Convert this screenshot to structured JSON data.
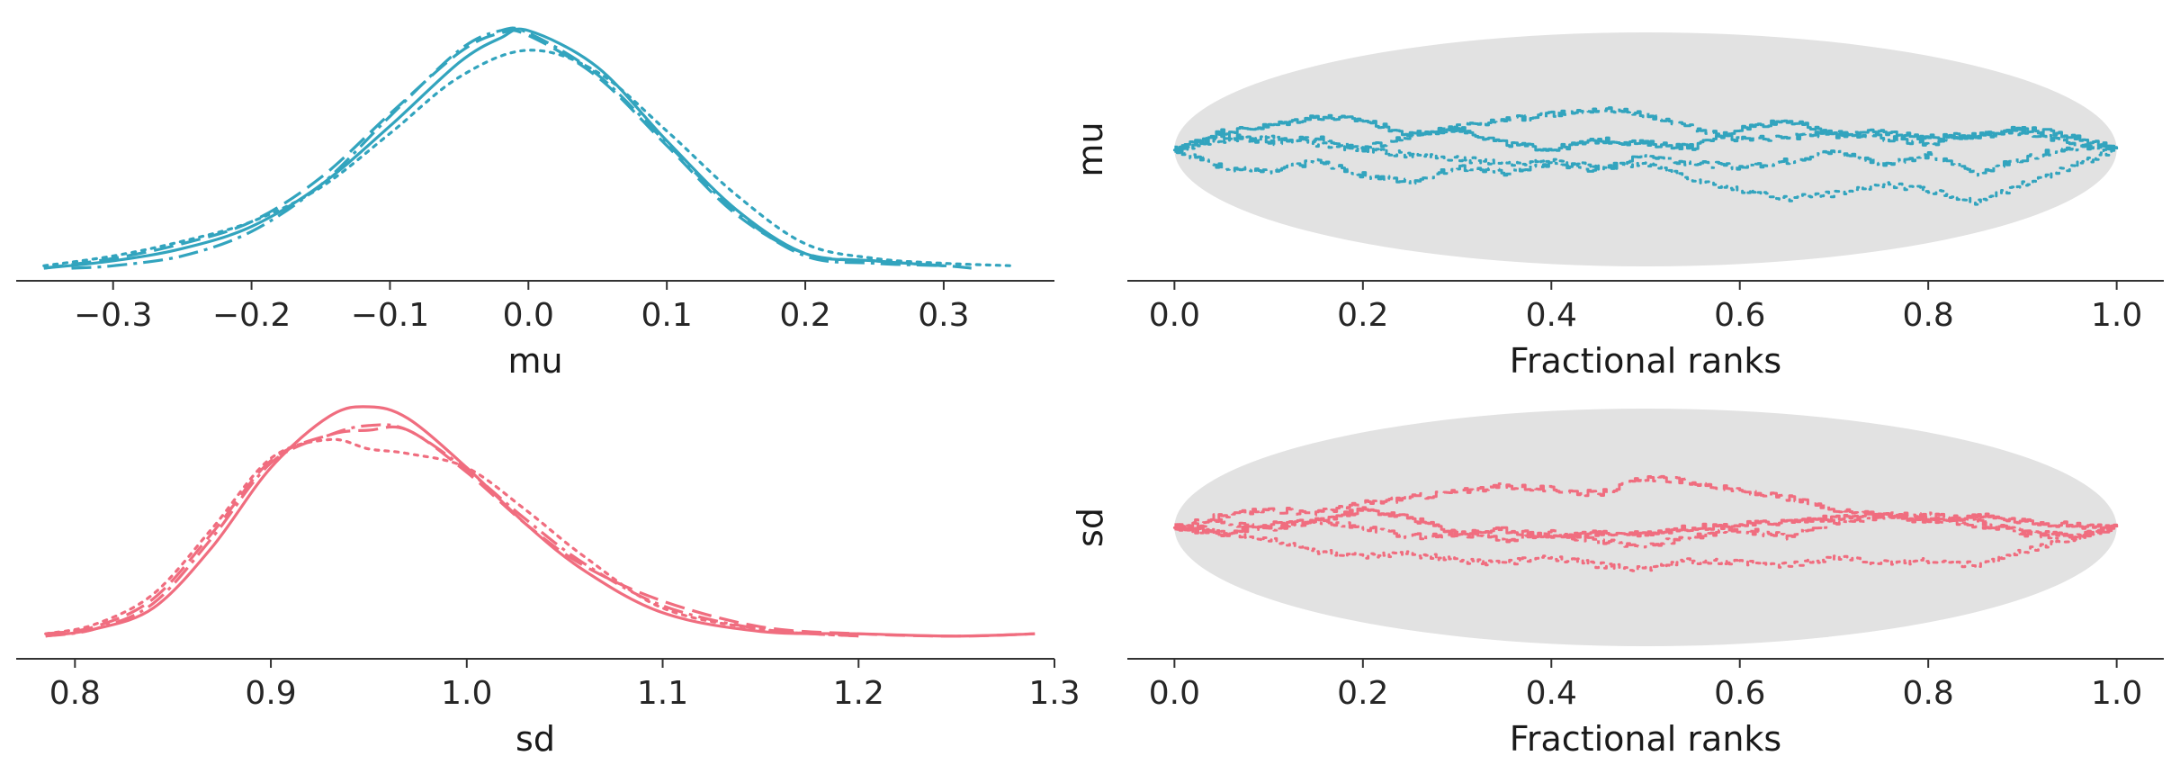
{
  "colors": {
    "mu": "#32a4be",
    "sd": "#f06d7f",
    "band": "#e2e2e2"
  },
  "chart_data": [
    {
      "id": "mu-density",
      "type": "line",
      "xlabel": "mu",
      "ylabel": "",
      "xlim": [
        -0.37,
        0.38
      ],
      "xticks": [
        -0.3,
        -0.2,
        -0.1,
        0.0,
        0.1,
        0.2,
        0.3
      ],
      "xtick_labels": [
        "−0.3",
        "−0.2",
        "−0.1",
        "0.0",
        "0.1",
        "0.2",
        "0.3"
      ],
      "yticks": [],
      "grid": false,
      "series": [
        {
          "style": "solid",
          "x": [
            -0.35,
            -0.3,
            -0.25,
            -0.2,
            -0.15,
            -0.1,
            -0.05,
            -0.02,
            0.0,
            0.05,
            0.1,
            0.15,
            0.2,
            0.25,
            0.3
          ],
          "y": [
            0.0,
            0.03,
            0.08,
            0.17,
            0.34,
            0.58,
            0.84,
            0.94,
            0.97,
            0.82,
            0.52,
            0.24,
            0.06,
            0.03,
            0.01
          ]
        },
        {
          "style": "dashed",
          "x": [
            -0.35,
            -0.3,
            -0.25,
            -0.2,
            -0.15,
            -0.1,
            -0.05,
            -0.02,
            0.0,
            0.05,
            0.1,
            0.15,
            0.2,
            0.25,
            0.3
          ],
          "y": [
            0.0,
            0.04,
            0.1,
            0.19,
            0.37,
            0.63,
            0.88,
            0.96,
            0.95,
            0.78,
            0.5,
            0.22,
            0.06,
            0.03,
            0.01
          ]
        },
        {
          "style": "dotted",
          "x": [
            -0.35,
            -0.3,
            -0.25,
            -0.2,
            -0.15,
            -0.1,
            -0.05,
            0.0,
            0.05,
            0.1,
            0.15,
            0.2,
            0.25,
            0.3,
            0.35
          ],
          "y": [
            0.01,
            0.05,
            0.11,
            0.19,
            0.33,
            0.55,
            0.78,
            0.89,
            0.8,
            0.56,
            0.3,
            0.1,
            0.04,
            0.02,
            0.01
          ]
        },
        {
          "style": "dashdot",
          "x": [
            -0.33,
            -0.3,
            -0.25,
            -0.2,
            -0.15,
            -0.1,
            -0.05,
            -0.02,
            0.0,
            0.05,
            0.1,
            0.15,
            0.2,
            0.25,
            0.3,
            0.32
          ],
          "y": [
            0.0,
            0.01,
            0.05,
            0.15,
            0.34,
            0.62,
            0.89,
            0.97,
            0.96,
            0.79,
            0.51,
            0.23,
            0.05,
            0.02,
            0.01,
            0.0
          ]
        }
      ]
    },
    {
      "id": "mu-rank",
      "type": "line",
      "xlabel": "Fractional ranks",
      "ylabel": "mu",
      "xlim": [
        -0.05,
        1.05
      ],
      "xticks": [
        0.0,
        0.2,
        0.4,
        0.6,
        0.8,
        1.0
      ],
      "xtick_labels": [
        "0.0",
        "0.2",
        "0.4",
        "0.6",
        "0.8",
        "1.0"
      ],
      "yticks": [],
      "ylim": [
        -1,
        1
      ],
      "grid": false,
      "band": "ellipse",
      "series": [
        {
          "style": "solid",
          "x": [
            0.0,
            0.05,
            0.1,
            0.15,
            0.2,
            0.25,
            0.3,
            0.35,
            0.4,
            0.45,
            0.5,
            0.55,
            0.6,
            0.65,
            0.7,
            0.75,
            0.8,
            0.85,
            0.9,
            0.95,
            1.0
          ],
          "y": [
            0.0,
            0.15,
            0.2,
            0.28,
            0.25,
            0.12,
            0.18,
            0.05,
            0.0,
            0.08,
            0.05,
            0.02,
            0.18,
            0.25,
            0.12,
            0.15,
            0.1,
            0.12,
            0.18,
            0.12,
            0.0
          ]
        },
        {
          "style": "dashed",
          "x": [
            0.0,
            0.05,
            0.1,
            0.15,
            0.2,
            0.25,
            0.3,
            0.35,
            0.4,
            0.45,
            0.5,
            0.55,
            0.6,
            0.65,
            0.7,
            0.75,
            0.8,
            0.85,
            0.9,
            0.95,
            1.0
          ],
          "y": [
            0.0,
            0.12,
            0.06,
            0.1,
            0.0,
            0.12,
            0.2,
            0.25,
            0.3,
            0.35,
            0.3,
            0.18,
            0.08,
            0.1,
            0.15,
            0.1,
            0.05,
            0.12,
            0.15,
            0.05,
            0.0
          ]
        },
        {
          "style": "dotted",
          "x": [
            0.0,
            0.05,
            0.1,
            0.15,
            0.2,
            0.25,
            0.3,
            0.35,
            0.4,
            0.45,
            0.5,
            0.55,
            0.6,
            0.65,
            0.7,
            0.75,
            0.8,
            0.85,
            0.9,
            0.95,
            1.0
          ],
          "y": [
            0.0,
            0.08,
            0.1,
            0.05,
            0.0,
            -0.05,
            -0.08,
            -0.12,
            -0.1,
            -0.15,
            -0.12,
            -0.25,
            -0.35,
            -0.42,
            -0.38,
            -0.3,
            -0.35,
            -0.45,
            -0.3,
            -0.15,
            0.0
          ]
        },
        {
          "style": "dashdot",
          "x": [
            0.0,
            0.05,
            0.1,
            0.15,
            0.2,
            0.25,
            0.3,
            0.35,
            0.4,
            0.45,
            0.5,
            0.55,
            0.6,
            0.65,
            0.7,
            0.75,
            0.8,
            0.85,
            0.9,
            0.95,
            1.0
          ],
          "y": [
            0.0,
            -0.15,
            -0.2,
            -0.1,
            -0.22,
            -0.28,
            -0.15,
            -0.2,
            -0.12,
            -0.18,
            -0.05,
            -0.12,
            -0.15,
            -0.1,
            -0.02,
            -0.12,
            -0.05,
            -0.2,
            -0.08,
            0.02,
            0.0
          ]
        }
      ]
    },
    {
      "id": "sd-density",
      "type": "line",
      "xlabel": "sd",
      "ylabel": "",
      "xlim": [
        0.77,
        1.3
      ],
      "xticks": [
        0.8,
        0.9,
        1.0,
        1.1,
        1.2,
        1.3
      ],
      "xtick_labels": [
        "0.8",
        "0.9",
        "1.0",
        "1.1",
        "1.2",
        "1.3"
      ],
      "yticks": [],
      "grid": false,
      "series": [
        {
          "style": "solid",
          "x": [
            0.785,
            0.81,
            0.84,
            0.87,
            0.9,
            0.93,
            0.95,
            0.97,
            1.0,
            1.03,
            1.06,
            1.1,
            1.15,
            1.2,
            1.25,
            1.29
          ],
          "y": [
            0.02,
            0.05,
            0.14,
            0.4,
            0.74,
            0.96,
            1.0,
            0.95,
            0.74,
            0.5,
            0.3,
            0.12,
            0.04,
            0.03,
            0.02,
            0.03
          ]
        },
        {
          "style": "dashed",
          "x": [
            0.785,
            0.81,
            0.84,
            0.87,
            0.9,
            0.93,
            0.95,
            0.97,
            1.0,
            1.03,
            1.06,
            1.1,
            1.15,
            1.2,
            1.25,
            1.29
          ],
          "y": [
            0.03,
            0.06,
            0.18,
            0.46,
            0.77,
            0.88,
            0.9,
            0.9,
            0.72,
            0.5,
            0.32,
            0.17,
            0.06,
            0.03,
            0.02,
            0.03
          ]
        },
        {
          "style": "dotted",
          "x": [
            0.785,
            0.81,
            0.84,
            0.87,
            0.9,
            0.93,
            0.95,
            0.97,
            1.0,
            1.03,
            1.06,
            1.1,
            1.15,
            1.2
          ],
          "y": [
            0.03,
            0.07,
            0.2,
            0.48,
            0.78,
            0.86,
            0.82,
            0.8,
            0.74,
            0.56,
            0.36,
            0.14,
            0.05,
            0.02
          ]
        },
        {
          "style": "dashdot",
          "x": [
            0.785,
            0.81,
            0.84,
            0.87,
            0.9,
            0.93,
            0.95,
            0.97,
            1.0,
            1.03,
            1.06,
            1.1,
            1.15,
            1.2
          ],
          "y": [
            0.02,
            0.05,
            0.16,
            0.44,
            0.76,
            0.88,
            0.92,
            0.9,
            0.73,
            0.52,
            0.33,
            0.15,
            0.05,
            0.02
          ]
        }
      ]
    },
    {
      "id": "sd-rank",
      "type": "line",
      "xlabel": "Fractional ranks",
      "ylabel": "sd",
      "xlim": [
        -0.05,
        1.05
      ],
      "xticks": [
        0.0,
        0.2,
        0.4,
        0.6,
        0.8,
        1.0
      ],
      "xtick_labels": [
        "0.0",
        "0.2",
        "0.4",
        "0.6",
        "0.8",
        "1.0"
      ],
      "yticks": [],
      "ylim": [
        -1,
        1
      ],
      "grid": false,
      "band": "ellipse",
      "series": [
        {
          "style": "solid",
          "x": [
            0.0,
            0.05,
            0.1,
            0.15,
            0.2,
            0.25,
            0.3,
            0.35,
            0.4,
            0.45,
            0.5,
            0.55,
            0.6,
            0.65,
            0.7,
            0.75,
            0.8,
            0.85,
            0.9,
            0.95,
            1.0
          ],
          "y": [
            0.0,
            -0.05,
            0.02,
            0.05,
            0.15,
            0.08,
            -0.05,
            -0.02,
            -0.08,
            -0.05,
            -0.05,
            0.0,
            0.02,
            0.05,
            0.08,
            0.1,
            0.05,
            0.1,
            0.05,
            0.02,
            0.0
          ]
        },
        {
          "style": "dashed",
          "x": [
            0.0,
            0.05,
            0.1,
            0.15,
            0.2,
            0.25,
            0.3,
            0.35,
            0.4,
            0.45,
            0.5,
            0.55,
            0.6,
            0.65,
            0.7,
            0.75,
            0.8,
            0.85,
            0.9,
            0.95,
            1.0
          ],
          "y": [
            0.0,
            0.1,
            0.15,
            0.12,
            0.2,
            0.25,
            0.3,
            0.35,
            0.32,
            0.28,
            0.42,
            0.38,
            0.3,
            0.25,
            0.15,
            0.12,
            0.08,
            0.02,
            -0.02,
            -0.08,
            0.0
          ]
        },
        {
          "style": "dotted",
          "x": [
            0.0,
            0.05,
            0.1,
            0.15,
            0.2,
            0.25,
            0.3,
            0.35,
            0.4,
            0.45,
            0.5,
            0.55,
            0.6,
            0.65,
            0.7,
            0.75,
            0.8,
            0.85,
            0.9,
            0.95,
            1.0
          ],
          "y": [
            0.0,
            -0.05,
            -0.1,
            -0.2,
            -0.25,
            -0.22,
            -0.28,
            -0.3,
            -0.25,
            -0.32,
            -0.35,
            -0.28,
            -0.3,
            -0.32,
            -0.25,
            -0.3,
            -0.28,
            -0.32,
            -0.2,
            -0.1,
            0.0
          ]
        },
        {
          "style": "dashdot",
          "x": [
            0.0,
            0.05,
            0.1,
            0.15,
            0.2,
            0.25,
            0.3,
            0.35,
            0.4,
            0.45,
            0.5,
            0.55,
            0.6,
            0.65,
            0.7,
            0.75,
            0.8,
            0.85,
            0.9,
            0.95,
            1.0
          ],
          "y": [
            0.0,
            0.05,
            -0.02,
            0.05,
            0.0,
            -0.08,
            -0.05,
            -0.1,
            -0.05,
            -0.12,
            -0.15,
            -0.08,
            -0.02,
            -0.08,
            0.05,
            0.08,
            0.1,
            0.05,
            -0.05,
            -0.08,
            0.0
          ]
        }
      ]
    }
  ]
}
